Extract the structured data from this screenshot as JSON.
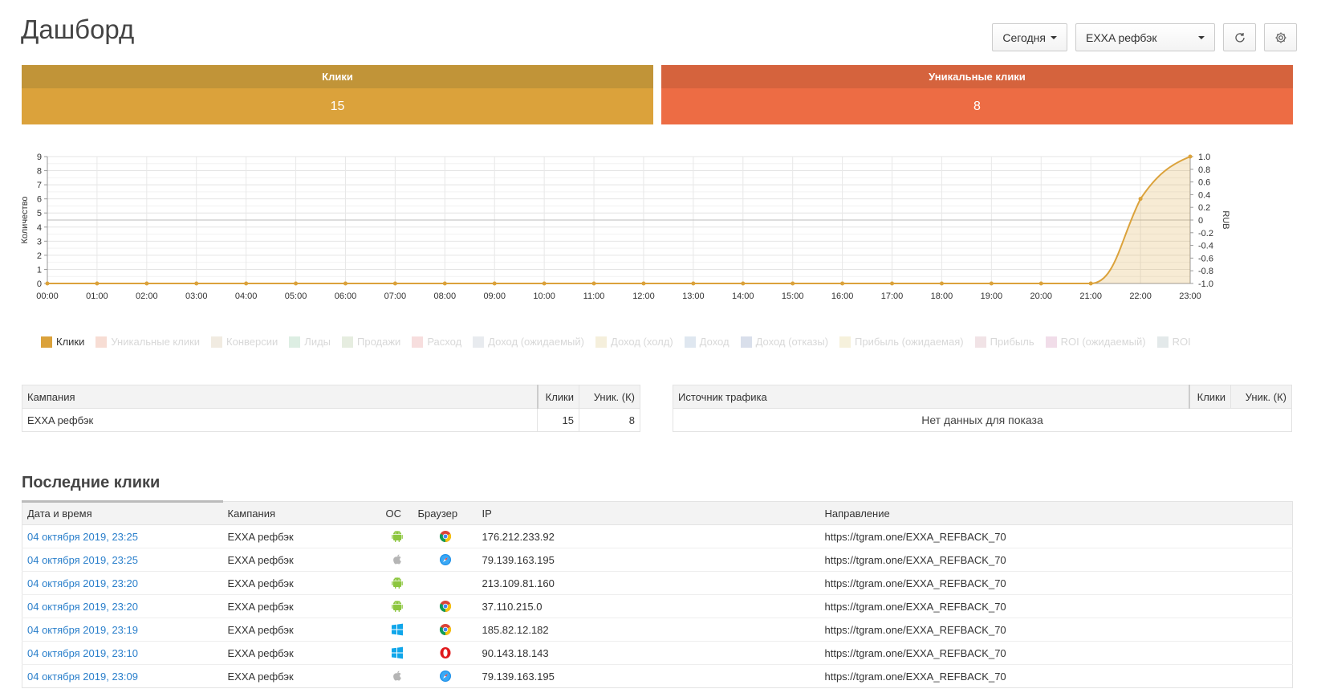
{
  "page": {
    "title": "Дашборд"
  },
  "toolbar": {
    "period_label": "Сегодня",
    "campaign_select": "EXXA рефбэк"
  },
  "stats": {
    "clicks_label": "Клики",
    "clicks_value": "15",
    "unique_label": "Уникальные клики",
    "unique_value": "8"
  },
  "chart_data": {
    "type": "line",
    "x": [
      "00:00",
      "01:00",
      "02:00",
      "03:00",
      "04:00",
      "05:00",
      "06:00",
      "07:00",
      "08:00",
      "09:00",
      "10:00",
      "11:00",
      "12:00",
      "13:00",
      "14:00",
      "15:00",
      "16:00",
      "17:00",
      "18:00",
      "19:00",
      "20:00",
      "21:00",
      "22:00",
      "23:00"
    ],
    "series": [
      {
        "name": "Клики",
        "values": [
          0,
          0,
          0,
          0,
          0,
          0,
          0,
          0,
          0,
          0,
          0,
          0,
          0,
          0,
          0,
          0,
          0,
          0,
          0,
          0,
          0,
          0,
          6,
          9
        ]
      }
    ],
    "ylabel": "Количество",
    "y2label": "RUB",
    "ylim": [
      0,
      9
    ],
    "y_ticks": [
      "0",
      "1",
      "2",
      "3",
      "4",
      "5",
      "6",
      "7",
      "8",
      "9"
    ],
    "y2_ticks": [
      "1.0",
      "0.8",
      "0.6",
      "0.4",
      "0.2",
      "0",
      "-0.2",
      "-0.4",
      "-0.6",
      "-0.8",
      "-1.0"
    ],
    "grid": true,
    "legend_position": "bottom-left",
    "color": "#dba23b"
  },
  "legend": [
    {
      "label": "Клики",
      "color": "#dba23b",
      "active": true
    },
    {
      "label": "Уникальные клики",
      "color": "#f7ddd4",
      "active": false
    },
    {
      "label": "Конверсии",
      "color": "#f1ebe1",
      "active": false
    },
    {
      "label": "Лиды",
      "color": "#ddeee3",
      "active": false
    },
    {
      "label": "Продажи",
      "color": "#e6ede0",
      "active": false
    },
    {
      "label": "Расход",
      "color": "#f7dede",
      "active": false
    },
    {
      "label": "Доход (ожидаемый)",
      "color": "#e8ebef",
      "active": false
    },
    {
      "label": "Доход (холд)",
      "color": "#f5efdc",
      "active": false
    },
    {
      "label": "Доход",
      "color": "#dfe7f0",
      "active": false
    },
    {
      "label": "Доход (отказы)",
      "color": "#d9dfeb",
      "active": false
    },
    {
      "label": "Прибыль (ожидаемая)",
      "color": "#f6f1dc",
      "active": false
    },
    {
      "label": "Прибыль",
      "color": "#f1e3e6",
      "active": false
    },
    {
      "label": "ROI (ожидаемый)",
      "color": "#f1dde9",
      "active": false
    },
    {
      "label": "ROI",
      "color": "#e3e9ea",
      "active": false
    }
  ],
  "campaigns_table": {
    "headers": [
      "Кампания",
      "Клики",
      "Уник. (К)"
    ],
    "rows": [
      {
        "name": "EXXA рефбэк",
        "clicks": "15",
        "unique": "8"
      }
    ]
  },
  "sources_table": {
    "headers": [
      "Источник трафика",
      "Клики",
      "Уник. (К)"
    ],
    "empty": "Нет данных для показа"
  },
  "recent": {
    "title": "Последние клики",
    "headers": [
      "Дата и время",
      "Кампания",
      "ОС",
      "Браузер",
      "IP",
      "Направление"
    ],
    "rows": [
      {
        "date": "04 октября 2019, 23:25",
        "campaign": "EXXA рефбэк",
        "os": "android-icon",
        "browser": "chrome-icon",
        "ip": "176.212.233.92",
        "dest": "https://tgram.one/EXXA_REFBACK_70"
      },
      {
        "date": "04 октября 2019, 23:25",
        "campaign": "EXXA рефбэк",
        "os": "apple-icon",
        "browser": "safari-icon",
        "ip": "79.139.163.195",
        "dest": "https://tgram.one/EXXA_REFBACK_70"
      },
      {
        "date": "04 октября 2019, 23:20",
        "campaign": "EXXA рефбэк",
        "os": "android-icon",
        "browser": "",
        "ip": "213.109.81.160",
        "dest": "https://tgram.one/EXXA_REFBACK_70"
      },
      {
        "date": "04 октября 2019, 23:20",
        "campaign": "EXXA рефбэк",
        "os": "android-icon",
        "browser": "chrome-icon",
        "ip": "37.110.215.0",
        "dest": "https://tgram.one/EXXA_REFBACK_70"
      },
      {
        "date": "04 октября 2019, 23:19",
        "campaign": "EXXA рефбэк",
        "os": "windows-icon",
        "browser": "chrome-icon",
        "ip": "185.82.12.182",
        "dest": "https://tgram.one/EXXA_REFBACK_70"
      },
      {
        "date": "04 октября 2019, 23:10",
        "campaign": "EXXA рефбэк",
        "os": "windows-icon",
        "browser": "opera-icon",
        "ip": "90.143.18.143",
        "dest": "https://tgram.one/EXXA_REFBACK_70"
      },
      {
        "date": "04 октября 2019, 23:09",
        "campaign": "EXXA рефбэк",
        "os": "apple-icon",
        "browser": "safari-icon",
        "ip": "79.139.163.195",
        "dest": "https://tgram.one/EXXA_REFBACK_70"
      }
    ]
  }
}
